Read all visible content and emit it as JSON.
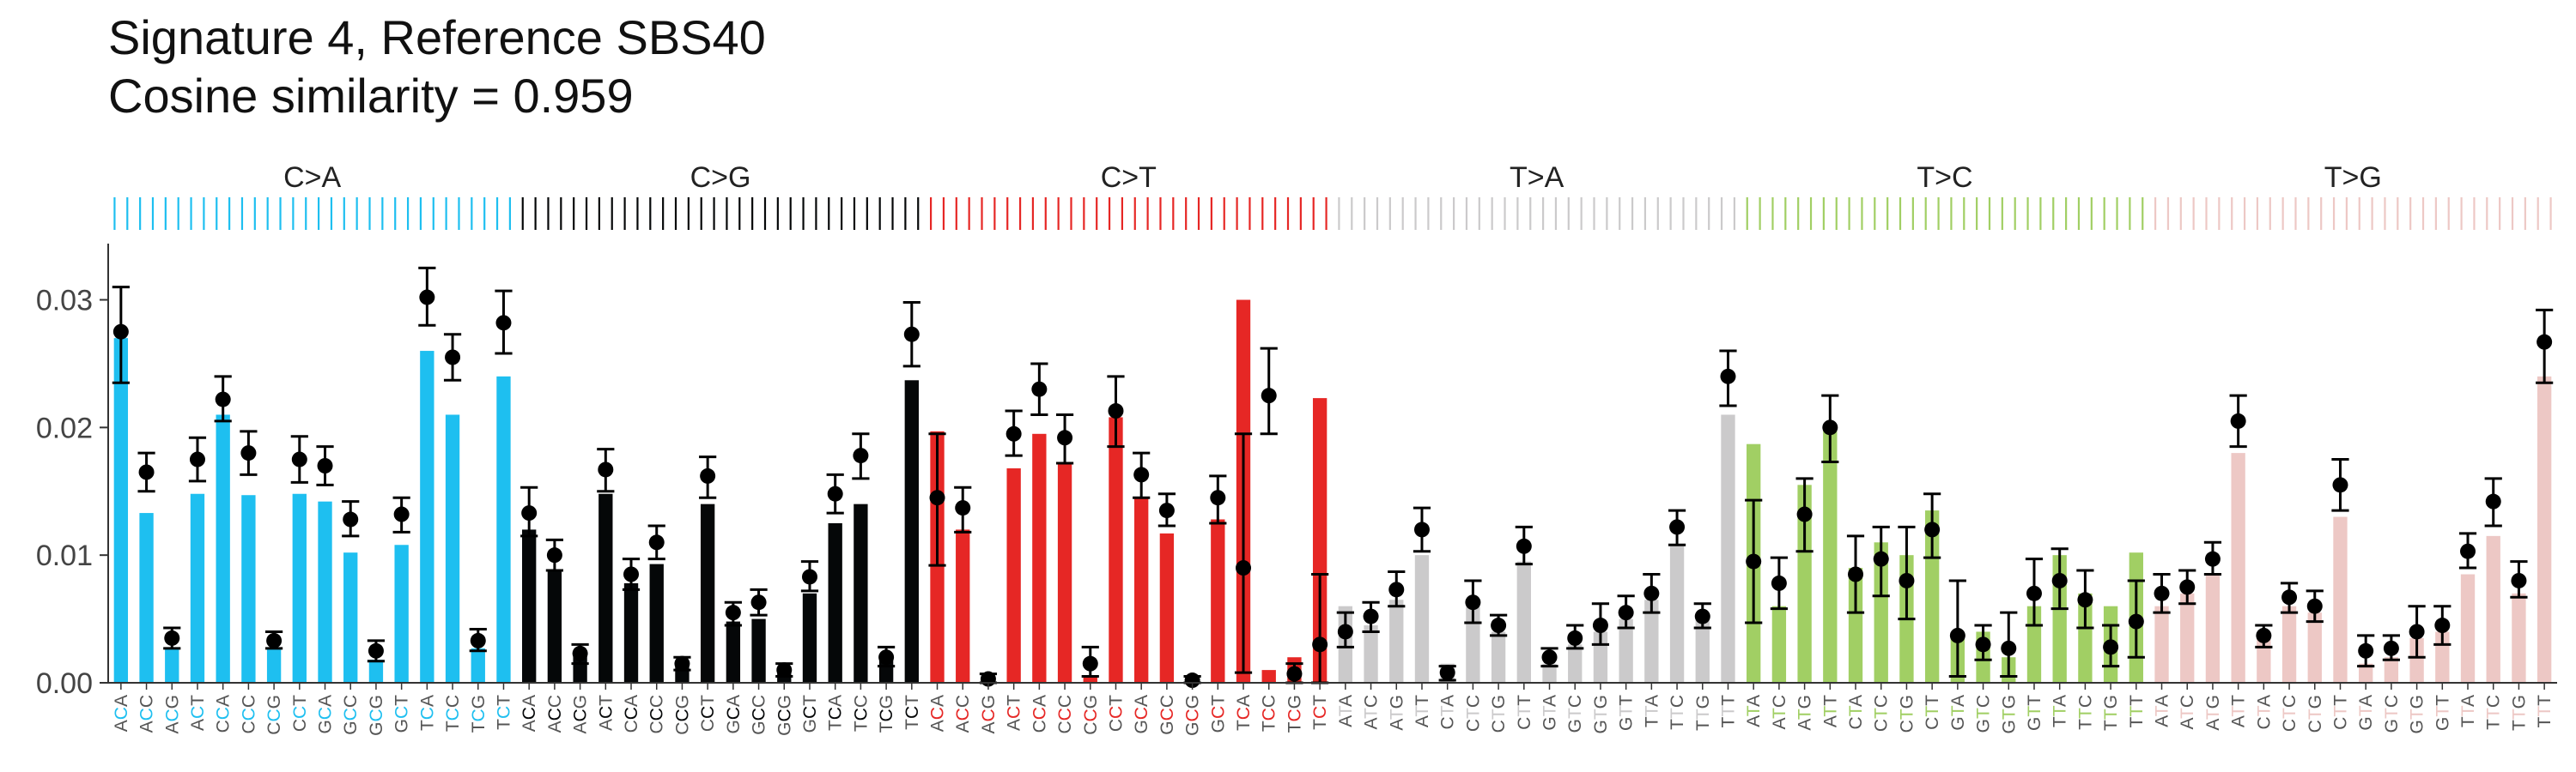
{
  "chart_data": {
    "type": "bar",
    "title": "Signature 4, Reference SBS40",
    "subtitle": "Cosine similarity = 0.959",
    "xlabel": "",
    "ylabel": "",
    "ylim": [
      0,
      0.034
    ],
    "yticks": [
      0.0,
      0.01,
      0.02,
      0.03
    ],
    "ytick_labels": [
      "0.00",
      "0.01",
      "0.02",
      "0.03"
    ],
    "grid": false,
    "groups": [
      {
        "label": "C>A",
        "color": "#1ebff0",
        "contexts": [
          "ACA",
          "ACC",
          "ACG",
          "ACT",
          "CCA",
          "CCC",
          "CCG",
          "CCT",
          "GCA",
          "GCC",
          "GCG",
          "GCT",
          "TCA",
          "TCC",
          "TCG",
          "TCT"
        ]
      },
      {
        "label": "C>G",
        "color": "#050708",
        "contexts": [
          "ACA",
          "ACC",
          "ACG",
          "ACT",
          "CCA",
          "CCC",
          "CCG",
          "CCT",
          "GCA",
          "GCC",
          "GCG",
          "GCT",
          "TCA",
          "TCC",
          "TCG",
          "TCT"
        ]
      },
      {
        "label": "C>T",
        "color": "#e62725",
        "contexts": [
          "ACA",
          "ACC",
          "ACG",
          "ACT",
          "CCA",
          "CCC",
          "CCG",
          "CCT",
          "GCA",
          "GCC",
          "GCG",
          "GCT",
          "TCA",
          "TCC",
          "TCG",
          "TCT"
        ]
      },
      {
        "label": "T>A",
        "color": "#cbcacb",
        "contexts": [
          "ATA",
          "ATC",
          "ATG",
          "ATT",
          "CTA",
          "CTC",
          "CTG",
          "CTT",
          "GTA",
          "GTC",
          "GTG",
          "GTT",
          "TTA",
          "TTC",
          "TTG",
          "TTT"
        ]
      },
      {
        "label": "T>C",
        "color": "#a1cf64",
        "contexts": [
          "ATA",
          "ATC",
          "ATG",
          "ATT",
          "CTA",
          "CTC",
          "CTG",
          "CTT",
          "GTA",
          "GTC",
          "GTG",
          "GTT",
          "TTA",
          "TTC",
          "TTG",
          "TTT"
        ]
      },
      {
        "label": "T>G",
        "color": "#edc8c5",
        "contexts": [
          "ATA",
          "ATC",
          "ATG",
          "ATT",
          "CTA",
          "CTC",
          "CTG",
          "CTT",
          "GTA",
          "GTC",
          "GTG",
          "GTT",
          "TTA",
          "TTC",
          "TTG",
          "TTT"
        ]
      }
    ],
    "reference_values": [
      0.027,
      0.0133,
      0.0027,
      0.0148,
      0.021,
      0.0147,
      0.0027,
      0.0148,
      0.0142,
      0.0102,
      0.0018,
      0.0108,
      0.026,
      0.021,
      0.0027,
      0.024,
      0.012,
      0.0088,
      0.0025,
      0.0148,
      0.0078,
      0.0093,
      0.0015,
      0.014,
      0.0048,
      0.005,
      0.001,
      0.007,
      0.0125,
      0.014,
      0.002,
      0.0237,
      0.0197,
      0.012,
      0.0005,
      0.0168,
      0.0195,
      0.0172,
      0.0005,
      0.0208,
      0.0145,
      0.0117,
      0.0005,
      0.0128,
      0.03,
      0.001,
      0.002,
      0.0223,
      0.006,
      0.0045,
      0.0065,
      0.01,
      0.0015,
      0.006,
      0.004,
      0.0095,
      0.0015,
      0.003,
      0.004,
      0.005,
      0.0065,
      0.0108,
      0.005,
      0.021,
      0.0187,
      0.006,
      0.0155,
      0.02,
      0.009,
      0.011,
      0.01,
      0.0135,
      0.0035,
      0.004,
      0.002,
      0.006,
      0.01,
      0.007,
      0.006,
      0.0102,
      0.006,
      0.007,
      0.0085,
      0.018,
      0.0035,
      0.006,
      0.0055,
      0.013,
      0.0015,
      0.002,
      0.0035,
      0.004,
      0.0085,
      0.0115,
      0.007,
      0.024
    ],
    "estimate_values": [
      0.0275,
      0.0165,
      0.0035,
      0.0175,
      0.0222,
      0.018,
      0.0033,
      0.0175,
      0.017,
      0.0128,
      0.0025,
      0.0132,
      0.0302,
      0.0255,
      0.0033,
      0.0282,
      0.0133,
      0.01,
      0.0023,
      0.0167,
      0.0085,
      0.011,
      0.0015,
      0.0162,
      0.0055,
      0.0063,
      0.001,
      0.0083,
      0.0148,
      0.0178,
      0.002,
      0.0273,
      0.0145,
      0.0137,
      0.0003,
      0.0195,
      0.023,
      0.0192,
      0.0015,
      0.0213,
      0.0163,
      0.0135,
      0.0002,
      0.0145,
      0.009,
      0.0225,
      0.0007,
      0.003,
      0.004,
      0.0052,
      0.0073,
      0.012,
      0.0008,
      0.0063,
      0.0045,
      0.0107,
      0.002,
      0.0035,
      0.0045,
      0.0055,
      0.007,
      0.0122,
      0.0052,
      0.024,
      0.0095,
      0.0078,
      0.0132,
      0.02,
      0.0085,
      0.0097,
      0.008,
      0.012,
      0.0037,
      0.003,
      0.0027,
      0.007,
      0.008,
      0.0065,
      0.0028,
      0.0048,
      0.007,
      0.0075,
      0.0097,
      0.0205,
      0.0037,
      0.0067,
      0.006,
      0.0155,
      0.0025,
      0.0027,
      0.004,
      0.0045,
      0.0103,
      0.0142,
      0.008,
      0.0267
    ],
    "error_bars": [
      [
        0.0235,
        0.031
      ],
      [
        0.015,
        0.018
      ],
      [
        0.0027,
        0.0043
      ],
      [
        0.0158,
        0.0192
      ],
      [
        0.0205,
        0.024
      ],
      [
        0.0163,
        0.0197
      ],
      [
        0.0027,
        0.004
      ],
      [
        0.0157,
        0.0193
      ],
      [
        0.0155,
        0.0185
      ],
      [
        0.0115,
        0.0142
      ],
      [
        0.0017,
        0.0033
      ],
      [
        0.0118,
        0.0145
      ],
      [
        0.028,
        0.0325
      ],
      [
        0.0237,
        0.0273
      ],
      [
        0.0025,
        0.0042
      ],
      [
        0.0258,
        0.0307
      ],
      [
        0.0115,
        0.0153
      ],
      [
        0.0088,
        0.0112
      ],
      [
        0.0015,
        0.003
      ],
      [
        0.015,
        0.0183
      ],
      [
        0.0073,
        0.0097
      ],
      [
        0.0097,
        0.0123
      ],
      [
        0.001,
        0.002
      ],
      [
        0.0145,
        0.0177
      ],
      [
        0.0045,
        0.0063
      ],
      [
        0.0053,
        0.0073
      ],
      [
        0.0005,
        0.0015
      ],
      [
        0.0072,
        0.0095
      ],
      [
        0.0133,
        0.0163
      ],
      [
        0.016,
        0.0195
      ],
      [
        0.0013,
        0.0028
      ],
      [
        0.0248,
        0.0298
      ],
      [
        0.0092,
        0.0195
      ],
      [
        0.0118,
        0.0153
      ],
      [
        0.0,
        0.0007
      ],
      [
        0.0178,
        0.0213
      ],
      [
        0.021,
        0.025
      ],
      [
        0.0172,
        0.021
      ],
      [
        0.0005,
        0.0028
      ],
      [
        0.0185,
        0.024
      ],
      [
        0.0145,
        0.018
      ],
      [
        0.0123,
        0.0148
      ],
      [
        0.0,
        0.0005
      ],
      [
        0.0125,
        0.0162
      ],
      [
        0.0008,
        0.0195
      ],
      [
        0.0195,
        0.0262
      ],
      [
        0.0,
        0.0015
      ],
      [
        0.0,
        0.0085
      ],
      [
        0.0028,
        0.0055
      ],
      [
        0.004,
        0.0063
      ],
      [
        0.006,
        0.0087
      ],
      [
        0.0103,
        0.0137
      ],
      [
        0.0002,
        0.0013
      ],
      [
        0.0047,
        0.008
      ],
      [
        0.0037,
        0.0053
      ],
      [
        0.0093,
        0.0122
      ],
      [
        0.0013,
        0.0027
      ],
      [
        0.0027,
        0.0045
      ],
      [
        0.003,
        0.0062
      ],
      [
        0.0043,
        0.0068
      ],
      [
        0.0055,
        0.0085
      ],
      [
        0.0108,
        0.0135
      ],
      [
        0.0043,
        0.0062
      ],
      [
        0.0217,
        0.026
      ],
      [
        0.0047,
        0.0143
      ],
      [
        0.0058,
        0.0098
      ],
      [
        0.0103,
        0.016
      ],
      [
        0.0173,
        0.0225
      ],
      [
        0.0055,
        0.0115
      ],
      [
        0.0068,
        0.0122
      ],
      [
        0.005,
        0.0122
      ],
      [
        0.0098,
        0.0148
      ],
      [
        0.0005,
        0.008
      ],
      [
        0.0018,
        0.0045
      ],
      [
        0.0005,
        0.0055
      ],
      [
        0.0045,
        0.0097
      ],
      [
        0.0058,
        0.0105
      ],
      [
        0.0043,
        0.0088
      ],
      [
        0.0013,
        0.0045
      ],
      [
        0.002,
        0.008
      ],
      [
        0.0055,
        0.0085
      ],
      [
        0.0062,
        0.0088
      ],
      [
        0.0085,
        0.011
      ],
      [
        0.0185,
        0.0225
      ],
      [
        0.0028,
        0.0045
      ],
      [
        0.0055,
        0.0078
      ],
      [
        0.0048,
        0.0072
      ],
      [
        0.0135,
        0.0175
      ],
      [
        0.0013,
        0.0037
      ],
      [
        0.0018,
        0.0037
      ],
      [
        0.002,
        0.006
      ],
      [
        0.003,
        0.006
      ],
      [
        0.009,
        0.0117
      ],
      [
        0.0123,
        0.016
      ],
      [
        0.0067,
        0.0095
      ],
      [
        0.0235,
        0.0292
      ]
    ],
    "legend": "none"
  }
}
